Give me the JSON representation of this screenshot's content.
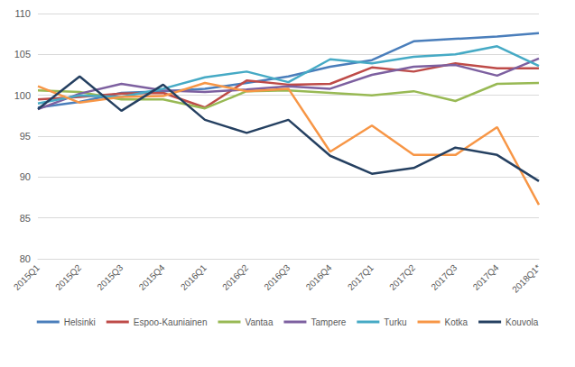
{
  "chart_data": {
    "type": "line",
    "categories": [
      "2015Q1",
      "2015Q2",
      "2015Q3",
      "2015Q4",
      "2016Q1",
      "2016Q2",
      "2016Q3",
      "2016Q4",
      "2017Q1",
      "2017Q2",
      "2017Q3",
      "2017Q4",
      "2018Q1*"
    ],
    "series": [
      {
        "name": "Helsinki",
        "color": "#4a7ebb",
        "values": [
          98.5,
          99.2,
          100.3,
          100.5,
          100.8,
          101.5,
          102.3,
          103.5,
          104.3,
          106.6,
          106.9,
          107.2,
          107.6
        ]
      },
      {
        "name": "Espoo-Kauniainen",
        "color": "#be4b48",
        "values": [
          99.5,
          99.8,
          100.2,
          100.3,
          98.5,
          101.8,
          101.3,
          101.4,
          103.4,
          102.9,
          103.9,
          103.3,
          103.3
        ]
      },
      {
        "name": "Vantaa",
        "color": "#98b954",
        "values": [
          100.6,
          100.4,
          99.5,
          99.5,
          98.4,
          100.5,
          100.6,
          100.3,
          100.0,
          100.5,
          99.3,
          101.4,
          101.5
        ]
      },
      {
        "name": "Tampere",
        "color": "#7d60a0",
        "values": [
          98.3,
          100.2,
          101.4,
          100.6,
          100.4,
          100.7,
          101.1,
          100.8,
          102.5,
          103.5,
          103.7,
          102.4,
          104.5
        ]
      },
      {
        "name": "Turku",
        "color": "#46aac5",
        "values": [
          99.0,
          100.0,
          99.8,
          100.8,
          102.2,
          102.9,
          101.6,
          104.4,
          103.9,
          104.7,
          105.0,
          106.0,
          103.6
        ]
      },
      {
        "name": "Kotka",
        "color": "#f79646",
        "values": [
          101.1,
          99.1,
          99.8,
          99.9,
          101.5,
          100.5,
          100.8,
          93.1,
          96.3,
          92.7,
          92.7,
          96.1,
          86.6
        ]
      },
      {
        "name": "Kouvola",
        "color": "#254061",
        "values": [
          98.3,
          102.3,
          98.1,
          101.3,
          97.0,
          95.4,
          97.0,
          92.6,
          90.4,
          91.1,
          93.6,
          92.7,
          89.5
        ]
      }
    ],
    "ylim": [
      80,
      110
    ],
    "yticks": [
      80,
      85,
      90,
      95,
      100,
      105,
      110
    ],
    "grid": true,
    "legend": "bottom"
  }
}
